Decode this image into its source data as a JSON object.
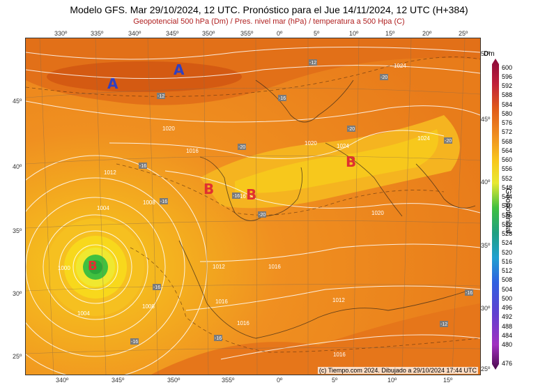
{
  "title": "Modelo GFS. Mar 29/10/2024, 12 UTC. Pronóstico para el Jue 14/11/2024, 12 UTC (H+384)",
  "subtitle": "Geopotencial 500 hPa (Dm) / Pres. nivel mar (hPa) / temperatura a 500 Hpa (C)",
  "credit": "(c) Tiempo.com 2024. Dibujado a 29/10/2024 17:44 UTC",
  "top_longitudes": [
    "330º",
    "335º",
    "340º",
    "345º",
    "350º",
    "355º",
    "0º",
    "5º",
    "10º",
    "15º",
    "20º",
    "25º"
  ],
  "bottom_longitudes": [
    "340º",
    "345º",
    "350º",
    "355º",
    "0º",
    "5º",
    "10º",
    "15º"
  ],
  "left_latitudes": [
    "45º",
    "40º",
    "35º",
    "30º",
    "25º"
  ],
  "right_latitudes": [
    "50º",
    "45º",
    "40º",
    "35º",
    "30º",
    "25º"
  ],
  "colorbar": {
    "unit": "Dm",
    "label": "Geopotencial",
    "levels": [
      "600",
      "596",
      "592",
      "588",
      "584",
      "580",
      "576",
      "572",
      "568",
      "564",
      "560",
      "556",
      "552",
      "548",
      "544",
      "540",
      "536",
      "532",
      "528",
      "524",
      "520",
      "516",
      "512",
      "508",
      "504",
      "500",
      "496",
      "492",
      "488",
      "484",
      "480",
      "476"
    ]
  },
  "pressure_labels": [
    "1024",
    "1020",
    "1016",
    "1012",
    "1008",
    "1004",
    "1000",
    "1020",
    "1024",
    "1024",
    "1020",
    "1016",
    "1016",
    "1012",
    "1008",
    "1004",
    "1016",
    "1016",
    "1016",
    "1012"
  ],
  "temperature_labels": [
    "-12",
    "-12",
    "-16",
    "-16",
    "-20",
    "-20",
    "-20",
    "-16",
    "-20",
    "-16",
    "-20",
    "-16",
    "-16",
    "-16",
    "-16",
    "-12"
  ],
  "systems": [
    {
      "letter": "A",
      "color": "#3040c0"
    },
    {
      "letter": "A",
      "color": "#3040c0"
    },
    {
      "letter": "B",
      "color": "#e03030"
    },
    {
      "letter": "B",
      "color": "#e03030"
    },
    {
      "letter": "B",
      "color": "#e03030"
    },
    {
      "letter": "B",
      "color": "#e03030"
    }
  ],
  "colors": {
    "deep_orange": "#e06a1a",
    "orange": "#f08a1c",
    "amber": "#f5a623",
    "yellow": "#f7c51c",
    "pale_yellow": "#f8e03a",
    "green": "#40c040",
    "dark_red": "#c04010"
  }
}
